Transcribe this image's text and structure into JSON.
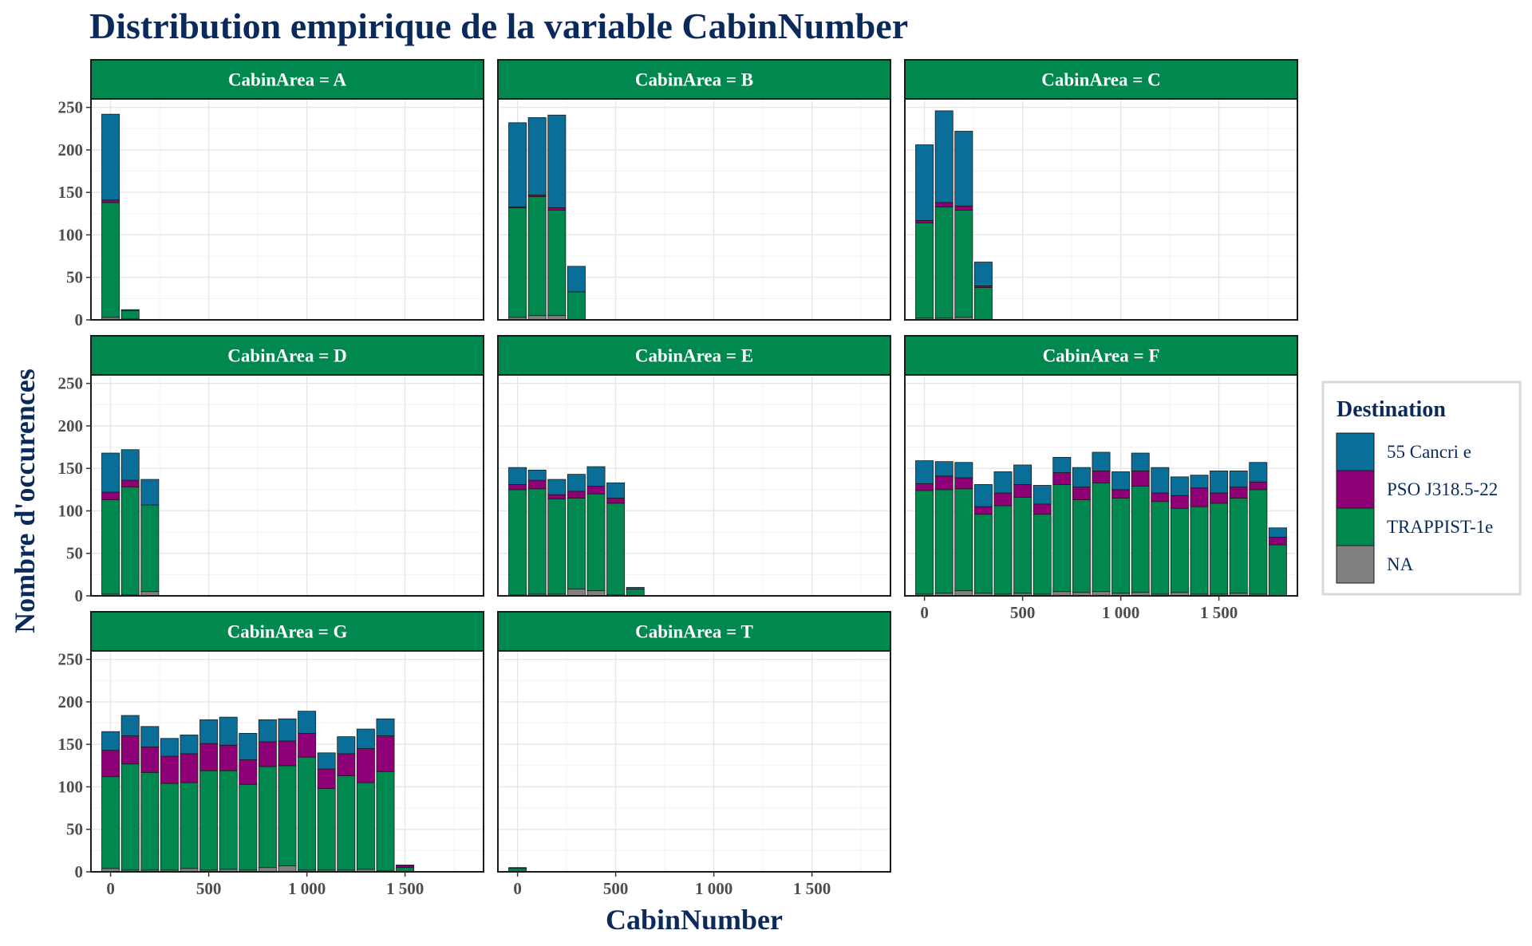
{
  "chart_data": {
    "type": "bar",
    "title": "Distribution empirique de la variable CabinNumber",
    "xlabel": "CabinNumber",
    "ylabel": "Nombre d'occurences",
    "xlim": [
      -100,
      1900
    ],
    "ylim": [
      0,
      260
    ],
    "x_ticks": [
      0,
      500,
      1000,
      1500
    ],
    "x_tick_labels": [
      "0",
      "500",
      "1 000",
      "1 500"
    ],
    "y_ticks": [
      0,
      50,
      100,
      150,
      200,
      250
    ],
    "y_tick_labels": [
      "0",
      "50",
      "100",
      "150",
      "200",
      "250"
    ],
    "bin_width": 100,
    "bar_width_fraction": 0.9,
    "stacking": "stacked",
    "grid": true,
    "legend_title": "Destination",
    "legend_position": "right",
    "series": [
      {
        "name": "55 Cancri e",
        "color": "#0a6f98"
      },
      {
        "name": "PSO J318.5-22",
        "color": "#8e0075"
      },
      {
        "name": "TRAPPIST-1e",
        "color": "#00884e"
      },
      {
        "name": "NA",
        "color": "#808080"
      }
    ],
    "stack_order": [
      "NA",
      "TRAPPIST-1e",
      "PSO J318.5-22",
      "55 Cancri e"
    ],
    "strip_color": "#00884e",
    "facets": [
      {
        "label": "CabinArea = A",
        "bars": [
          {
            "x": 0,
            "NA": 3,
            "TRAPPIST-1e": 135,
            "PSO J318.5-22": 3,
            "55 Cancri e": 101
          },
          {
            "x": 100,
            "NA": 1,
            "TRAPPIST-1e": 10,
            "PSO J318.5-22": 0,
            "55 Cancri e": 1
          }
        ]
      },
      {
        "label": "CabinArea = B",
        "bars": [
          {
            "x": 0,
            "NA": 3,
            "TRAPPIST-1e": 129,
            "PSO J318.5-22": 1,
            "55 Cancri e": 99
          },
          {
            "x": 100,
            "NA": 5,
            "TRAPPIST-1e": 140,
            "PSO J318.5-22": 2,
            "55 Cancri e": 91
          },
          {
            "x": 200,
            "NA": 5,
            "TRAPPIST-1e": 124,
            "PSO J318.5-22": 3,
            "55 Cancri e": 109
          },
          {
            "x": 300,
            "NA": 0,
            "TRAPPIST-1e": 33,
            "PSO J318.5-22": 0,
            "55 Cancri e": 30
          }
        ]
      },
      {
        "label": "CabinArea = C",
        "bars": [
          {
            "x": 0,
            "NA": 2,
            "TRAPPIST-1e": 112,
            "PSO J318.5-22": 3,
            "55 Cancri e": 89
          },
          {
            "x": 100,
            "NA": 2,
            "TRAPPIST-1e": 131,
            "PSO J318.5-22": 5,
            "55 Cancri e": 108
          },
          {
            "x": 200,
            "NA": 3,
            "TRAPPIST-1e": 126,
            "PSO J318.5-22": 5,
            "55 Cancri e": 88
          },
          {
            "x": 300,
            "NA": 0,
            "TRAPPIST-1e": 38,
            "PSO J318.5-22": 2,
            "55 Cancri e": 28
          }
        ]
      },
      {
        "label": "CabinArea = D",
        "bars": [
          {
            "x": 0,
            "NA": 2,
            "TRAPPIST-1e": 111,
            "PSO J318.5-22": 9,
            "55 Cancri e": 46
          },
          {
            "x": 100,
            "NA": 1,
            "TRAPPIST-1e": 127,
            "PSO J318.5-22": 8,
            "55 Cancri e": 36
          },
          {
            "x": 200,
            "NA": 5,
            "TRAPPIST-1e": 102,
            "PSO J318.5-22": 0,
            "55 Cancri e": 30
          }
        ]
      },
      {
        "label": "CabinArea = E",
        "bars": [
          {
            "x": 0,
            "NA": 1,
            "TRAPPIST-1e": 124,
            "PSO J318.5-22": 6,
            "55 Cancri e": 20
          },
          {
            "x": 100,
            "NA": 2,
            "TRAPPIST-1e": 124,
            "PSO J318.5-22": 10,
            "55 Cancri e": 12
          },
          {
            "x": 200,
            "NA": 2,
            "TRAPPIST-1e": 112,
            "PSO J318.5-22": 5,
            "55 Cancri e": 18
          },
          {
            "x": 300,
            "NA": 8,
            "TRAPPIST-1e": 107,
            "PSO J318.5-22": 8,
            "55 Cancri e": 20
          },
          {
            "x": 400,
            "NA": 6,
            "TRAPPIST-1e": 114,
            "PSO J318.5-22": 9,
            "55 Cancri e": 23
          },
          {
            "x": 500,
            "NA": 1,
            "TRAPPIST-1e": 108,
            "PSO J318.5-22": 6,
            "55 Cancri e": 18
          },
          {
            "x": 600,
            "NA": 0,
            "TRAPPIST-1e": 8,
            "PSO J318.5-22": 0,
            "55 Cancri e": 2
          }
        ]
      },
      {
        "label": "CabinArea = F",
        "bars": [
          {
            "x": 0,
            "NA": 2,
            "TRAPPIST-1e": 122,
            "PSO J318.5-22": 8,
            "55 Cancri e": 27
          },
          {
            "x": 100,
            "NA": 3,
            "TRAPPIST-1e": 122,
            "PSO J318.5-22": 16,
            "55 Cancri e": 17
          },
          {
            "x": 200,
            "NA": 6,
            "TRAPPIST-1e": 120,
            "PSO J318.5-22": 13,
            "55 Cancri e": 18
          },
          {
            "x": 300,
            "NA": 3,
            "TRAPPIST-1e": 93,
            "PSO J318.5-22": 9,
            "55 Cancri e": 26
          },
          {
            "x": 400,
            "NA": 2,
            "TRAPPIST-1e": 104,
            "PSO J318.5-22": 15,
            "55 Cancri e": 25
          },
          {
            "x": 500,
            "NA": 3,
            "TRAPPIST-1e": 113,
            "PSO J318.5-22": 15,
            "55 Cancri e": 23
          },
          {
            "x": 600,
            "NA": 2,
            "TRAPPIST-1e": 94,
            "PSO J318.5-22": 12,
            "55 Cancri e": 22
          },
          {
            "x": 700,
            "NA": 5,
            "TRAPPIST-1e": 126,
            "PSO J318.5-22": 14,
            "55 Cancri e": 18
          },
          {
            "x": 800,
            "NA": 4,
            "TRAPPIST-1e": 109,
            "PSO J318.5-22": 15,
            "55 Cancri e": 23
          },
          {
            "x": 900,
            "NA": 5,
            "TRAPPIST-1e": 128,
            "PSO J318.5-22": 14,
            "55 Cancri e": 22
          },
          {
            "x": 1000,
            "NA": 3,
            "TRAPPIST-1e": 112,
            "PSO J318.5-22": 10,
            "55 Cancri e": 21
          },
          {
            "x": 1100,
            "NA": 4,
            "TRAPPIST-1e": 125,
            "PSO J318.5-22": 18,
            "55 Cancri e": 21
          },
          {
            "x": 1200,
            "NA": 2,
            "TRAPPIST-1e": 109,
            "PSO J318.5-22": 10,
            "55 Cancri e": 30
          },
          {
            "x": 1300,
            "NA": 4,
            "TRAPPIST-1e": 99,
            "PSO J318.5-22": 15,
            "55 Cancri e": 22
          },
          {
            "x": 1400,
            "NA": 2,
            "TRAPPIST-1e": 103,
            "PSO J318.5-22": 22,
            "55 Cancri e": 15
          },
          {
            "x": 1500,
            "NA": 2,
            "TRAPPIST-1e": 107,
            "PSO J318.5-22": 12,
            "55 Cancri e": 26
          },
          {
            "x": 1600,
            "NA": 3,
            "TRAPPIST-1e": 112,
            "PSO J318.5-22": 13,
            "55 Cancri e": 19
          },
          {
            "x": 1700,
            "NA": 2,
            "TRAPPIST-1e": 123,
            "PSO J318.5-22": 9,
            "55 Cancri e": 23
          },
          {
            "x": 1800,
            "NA": 0,
            "TRAPPIST-1e": 60,
            "PSO J318.5-22": 9,
            "55 Cancri e": 11
          }
        ]
      },
      {
        "label": "CabinArea = G",
        "bars": [
          {
            "x": 0,
            "NA": 4,
            "TRAPPIST-1e": 108,
            "PSO J318.5-22": 31,
            "55 Cancri e": 22
          },
          {
            "x": 100,
            "NA": 2,
            "TRAPPIST-1e": 125,
            "PSO J318.5-22": 33,
            "55 Cancri e": 24
          },
          {
            "x": 200,
            "NA": 2,
            "TRAPPIST-1e": 115,
            "PSO J318.5-22": 30,
            "55 Cancri e": 24
          },
          {
            "x": 300,
            "NA": 2,
            "TRAPPIST-1e": 102,
            "PSO J318.5-22": 32,
            "55 Cancri e": 21
          },
          {
            "x": 400,
            "NA": 4,
            "TRAPPIST-1e": 101,
            "PSO J318.5-22": 34,
            "55 Cancri e": 22
          },
          {
            "x": 500,
            "NA": 2,
            "TRAPPIST-1e": 117,
            "PSO J318.5-22": 32,
            "55 Cancri e": 28
          },
          {
            "x": 600,
            "NA": 3,
            "TRAPPIST-1e": 116,
            "PSO J318.5-22": 30,
            "55 Cancri e": 33
          },
          {
            "x": 700,
            "NA": 2,
            "TRAPPIST-1e": 101,
            "PSO J318.5-22": 29,
            "55 Cancri e": 31
          },
          {
            "x": 800,
            "NA": 5,
            "TRAPPIST-1e": 119,
            "PSO J318.5-22": 29,
            "55 Cancri e": 26
          },
          {
            "x": 900,
            "NA": 7,
            "TRAPPIST-1e": 118,
            "PSO J318.5-22": 29,
            "55 Cancri e": 26
          },
          {
            "x": 1000,
            "NA": 2,
            "TRAPPIST-1e": 133,
            "PSO J318.5-22": 28,
            "55 Cancri e": 26
          },
          {
            "x": 1100,
            "NA": 2,
            "TRAPPIST-1e": 96,
            "PSO J318.5-22": 23,
            "55 Cancri e": 19
          },
          {
            "x": 1200,
            "NA": 2,
            "TRAPPIST-1e": 111,
            "PSO J318.5-22": 26,
            "55 Cancri e": 20
          },
          {
            "x": 1300,
            "NA": 3,
            "TRAPPIST-1e": 102,
            "PSO J318.5-22": 40,
            "55 Cancri e": 23
          },
          {
            "x": 1400,
            "NA": 1,
            "TRAPPIST-1e": 117,
            "PSO J318.5-22": 42,
            "55 Cancri e": 20
          },
          {
            "x": 1500,
            "NA": 0,
            "TRAPPIST-1e": 5,
            "PSO J318.5-22": 2,
            "55 Cancri e": 1
          }
        ]
      },
      {
        "label": "CabinArea = T",
        "bars": [
          {
            "x": 0,
            "NA": 0,
            "TRAPPIST-1e": 4,
            "PSO J318.5-22": 0,
            "55 Cancri e": 1
          }
        ]
      }
    ]
  }
}
